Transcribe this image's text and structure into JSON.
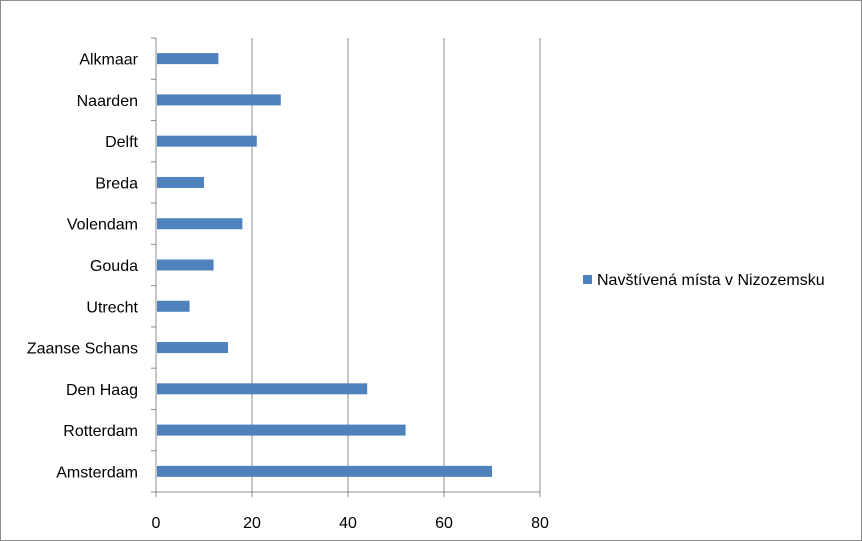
{
  "chart_data": {
    "type": "bar",
    "orientation": "horizontal",
    "categories": [
      "Amsterdam",
      "Rotterdam",
      "Den Haag",
      "Zaanse Schans",
      "Utrecht",
      "Gouda",
      "Volendam",
      "Breda",
      "Delft",
      "Naarden",
      "Alkmaar"
    ],
    "series": [
      {
        "name": "Navštívená místa v Nizozemsku",
        "color": "#4f81bd",
        "values": [
          70,
          52,
          44,
          15,
          7,
          12,
          18,
          10,
          21,
          26,
          13
        ]
      }
    ],
    "xlim": [
      0,
      80
    ],
    "x_ticks": [
      0,
      20,
      40,
      60,
      80
    ],
    "grid": "vertical",
    "legend_position": "right",
    "title": "",
    "xlabel": "",
    "ylabel": ""
  }
}
